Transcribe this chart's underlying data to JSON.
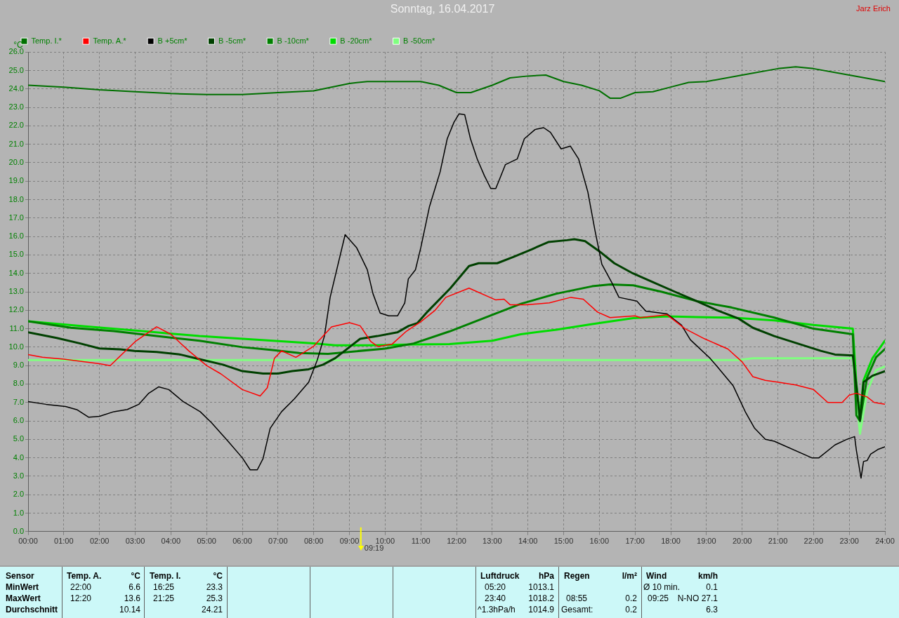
{
  "chart_data": {
    "type": "line",
    "title": "Sonntag, 16.04.2017",
    "ylabel": "°C",
    "xlim": [
      0,
      24
    ],
    "xticks": [
      {
        "value": 0,
        "label": "00:00"
      },
      {
        "value": 1,
        "label": "01:00"
      },
      {
        "value": 2,
        "label": "02:00"
      },
      {
        "value": 3,
        "label": "03:00"
      },
      {
        "value": 4,
        "label": "04:00"
      },
      {
        "value": 5,
        "label": "05:00"
      },
      {
        "value": 6,
        "label": "06:00"
      },
      {
        "value": 7,
        "label": "07:00"
      },
      {
        "value": 8,
        "label": "08:00"
      },
      {
        "value": 9,
        "label": "09:00"
      },
      {
        "value": 10,
        "label": "10:00"
      },
      {
        "value": 11,
        "label": "11:00"
      },
      {
        "value": 12,
        "label": "12:00"
      },
      {
        "value": 13,
        "label": "13:00"
      },
      {
        "value": 14,
        "label": "14:00"
      },
      {
        "value": 15,
        "label": "15:00"
      },
      {
        "value": 16,
        "label": "16:00"
      },
      {
        "value": 17,
        "label": "17:00"
      },
      {
        "value": 18,
        "label": "18:00"
      },
      {
        "value": 19,
        "label": "19:00"
      },
      {
        "value": 20,
        "label": "20:00"
      },
      {
        "value": 21,
        "label": "21:00"
      },
      {
        "value": 22,
        "label": "22:00"
      },
      {
        "value": 23,
        "label": "23:00"
      },
      {
        "value": 24,
        "label": "24:00"
      }
    ],
    "ylim": [
      0,
      26
    ],
    "yticks": [
      {
        "value": 0,
        "label": "0.0"
      },
      {
        "value": 1,
        "label": "1.0"
      },
      {
        "value": 2,
        "label": "2.0"
      },
      {
        "value": 3,
        "label": "3.0"
      },
      {
        "value": 4,
        "label": "4.0"
      },
      {
        "value": 5,
        "label": "5.0"
      },
      {
        "value": 6,
        "label": "6.0"
      },
      {
        "value": 7,
        "label": "7.0"
      },
      {
        "value": 8,
        "label": "8.0"
      },
      {
        "value": 9,
        "label": "9.0"
      },
      {
        "value": 10,
        "label": "10.0"
      },
      {
        "value": 11,
        "label": "11.0"
      },
      {
        "value": 12,
        "label": "12.0"
      },
      {
        "value": 13,
        "label": "13.0"
      },
      {
        "value": 14,
        "label": "14.0"
      },
      {
        "value": 15,
        "label": "15.0"
      },
      {
        "value": 16,
        "label": "16.0"
      },
      {
        "value": 17,
        "label": "17.0"
      },
      {
        "value": 18,
        "label": "18.0"
      },
      {
        "value": 19,
        "label": "19.0"
      },
      {
        "value": 20,
        "label": "20.0"
      },
      {
        "value": 21,
        "label": "21.0"
      },
      {
        "value": 22,
        "label": "22.0"
      },
      {
        "value": 23,
        "label": "23.0"
      },
      {
        "value": 24,
        "label": "24.0"
      },
      {
        "value": 25,
        "label": "25.0"
      },
      {
        "value": 26,
        "label": "26.0"
      }
    ],
    "grid": true,
    "legend": "top left",
    "marker": "none",
    "line_style": "solid",
    "ref_lines": [
      {
        "axis": "x",
        "value": 9.32,
        "label": "09:19",
        "color": "#ffff00"
      }
    ],
    "series": [
      {
        "name": "Temp. I.*",
        "color": "#007000",
        "x": [
          0,
          1,
          2,
          3,
          4,
          5,
          6,
          7,
          8,
          8.5,
          9,
          9.5,
          10,
          11,
          11.5,
          12,
          12.4,
          13,
          13.5,
          14,
          14.5,
          15,
          15.5,
          16,
          16.3,
          16.6,
          17,
          17.5,
          18,
          18.5,
          19,
          20,
          21,
          21.5,
          22,
          23,
          24
        ],
        "values": [
          24.2,
          24.1,
          23.95,
          23.85,
          23.75,
          23.7,
          23.7,
          23.8,
          23.9,
          24.1,
          24.3,
          24.4,
          24.4,
          24.4,
          24.2,
          23.8,
          23.8,
          24.2,
          24.6,
          24.7,
          24.75,
          24.4,
          24.2,
          23.9,
          23.5,
          23.5,
          23.8,
          23.85,
          24.1,
          24.35,
          24.4,
          24.75,
          25.1,
          25.2,
          25.1,
          24.75,
          24.4
        ]
      },
      {
        "name": "Temp. A.*",
        "color": "#ff0000",
        "x": [
          0,
          0.4,
          1,
          2,
          2.3,
          3,
          3.6,
          4,
          4.5,
          5,
          5.4,
          6,
          6.5,
          6.7,
          6.9,
          7.1,
          7.5,
          8,
          8.5,
          9,
          9.3,
          9.6,
          9.8,
          10.2,
          10.6,
          11,
          11.4,
          11.7,
          12.35,
          13.1,
          13.33,
          13.5,
          13.95,
          14.6,
          15.2,
          15.55,
          15.95,
          16.3,
          17,
          17.15,
          17.9,
          18.4,
          18.95,
          19.6,
          20,
          20.3,
          20.65,
          21,
          21.5,
          22,
          22.4,
          22.8,
          23,
          23.2,
          23.5,
          23.7,
          24
        ],
        "values": [
          9.6,
          9.45,
          9.35,
          9.1,
          9.0,
          10.3,
          11.1,
          10.7,
          9.8,
          9.0,
          8.55,
          7.7,
          7.35,
          7.8,
          9.4,
          9.8,
          9.45,
          10.05,
          11.1,
          11.33,
          11.16,
          10.3,
          10.03,
          10.17,
          10.87,
          11.38,
          12.0,
          12.7,
          13.2,
          12.56,
          12.6,
          12.3,
          12.3,
          12.4,
          12.7,
          12.6,
          11.9,
          11.6,
          11.7,
          11.6,
          11.75,
          11.0,
          10.45,
          9.9,
          9.2,
          8.4,
          8.2,
          8.1,
          7.95,
          7.7,
          7.0,
          7.0,
          7.4,
          7.5,
          7.3,
          7.0,
          6.9
        ]
      },
      {
        "name": "B +5cm*",
        "color": "#000000",
        "x": [
          0,
          0.5,
          1.05,
          1.38,
          1.7,
          2,
          2.4,
          2.78,
          3.1,
          3.38,
          3.66,
          3.94,
          4.34,
          4.82,
          5.14,
          5.6,
          6,
          6.22,
          6.42,
          6.58,
          6.78,
          7.1,
          7.46,
          7.86,
          8.1,
          8.3,
          8.46,
          8.88,
          9.2,
          9.5,
          9.66,
          9.86,
          10.1,
          10.35,
          10.55,
          10.65,
          10.85,
          11,
          11.24,
          11.54,
          11.74,
          11.93,
          12.07,
          12.23,
          12.39,
          12.58,
          12.78,
          12.96,
          13.1,
          13.37,
          13.7,
          13.9,
          14.2,
          14.44,
          14.63,
          14.93,
          15.19,
          15.42,
          15.68,
          15.88,
          16.07,
          16.35,
          16.55,
          17.05,
          17.3,
          17.9,
          18.3,
          18.55,
          19.1,
          19.3,
          19.75,
          20.1,
          20.35,
          20.65,
          20.9,
          21.95,
          22.15,
          22.6,
          22.93,
          23.15,
          23.2,
          23.33,
          23.4,
          23.5,
          23.6,
          23.8,
          24
        ],
        "values": [
          7.05,
          6.9,
          6.78,
          6.6,
          6.2,
          6.25,
          6.5,
          6.62,
          6.9,
          7.5,
          7.85,
          7.7,
          7.05,
          6.5,
          5.9,
          4.9,
          4.0,
          3.35,
          3.35,
          3.95,
          5.6,
          6.5,
          7.2,
          8.1,
          9.3,
          10.6,
          12.7,
          16.1,
          15.4,
          14.2,
          12.9,
          11.85,
          11.7,
          11.7,
          12.4,
          13.7,
          14.2,
          15.4,
          17.6,
          19.5,
          21.3,
          22.2,
          22.65,
          22.6,
          21.3,
          20.2,
          19.3,
          18.6,
          18.6,
          19.9,
          20.2,
          21.3,
          21.8,
          21.9,
          21.65,
          20.75,
          20.9,
          20.2,
          18.4,
          16.3,
          14.5,
          13.5,
          12.7,
          12.5,
          11.95,
          11.8,
          11.2,
          10.4,
          9.4,
          8.95,
          7.9,
          6.45,
          5.6,
          5.0,
          4.9,
          4.0,
          4.0,
          4.7,
          5.0,
          5.15,
          4.4,
          2.9,
          3.8,
          3.85,
          4.2,
          4.45,
          4.6
        ]
      },
      {
        "name": "B -5cm*",
        "color": "#004000",
        "x": [
          0,
          0.8,
          1.46,
          2,
          2.58,
          2.98,
          3.6,
          4.26,
          4.8,
          5.46,
          6,
          6.58,
          7,
          7.4,
          7.86,
          8.26,
          8.6,
          9,
          9.3,
          9.78,
          10.34,
          10.66,
          10.9,
          11.2,
          11.83,
          12.35,
          12.62,
          13.14,
          13.6,
          14.1,
          14.57,
          15.1,
          15.3,
          15.6,
          16,
          16.42,
          16.94,
          17.53,
          18.12,
          18.72,
          19.3,
          19.9,
          20.3,
          20.9,
          21.55,
          22.2,
          22.6,
          23.1,
          23.2,
          23.3,
          23.4,
          23.65,
          24
        ],
        "values": [
          10.8,
          10.5,
          10.2,
          9.93,
          9.88,
          9.8,
          9.74,
          9.6,
          9.35,
          9.05,
          8.7,
          8.57,
          8.57,
          8.7,
          8.8,
          9.05,
          9.4,
          10.0,
          10.45,
          10.6,
          10.8,
          11.15,
          11.3,
          11.95,
          13.2,
          14.4,
          14.55,
          14.55,
          14.9,
          15.3,
          15.7,
          15.8,
          15.85,
          15.75,
          15.2,
          14.55,
          14.0,
          13.5,
          13.0,
          12.5,
          12.0,
          11.55,
          11.05,
          10.6,
          10.2,
          9.8,
          9.6,
          9.55,
          7.9,
          6.0,
          8.1,
          8.45,
          8.7
        ]
      },
      {
        "name": "B -10cm*",
        "color": "#008000",
        "x": [
          0,
          1.2,
          2.4,
          3.6,
          4.8,
          6,
          6.8,
          7.6,
          8.4,
          9.2,
          10,
          10.8,
          11.8,
          13,
          13.8,
          14.8,
          15.8,
          16.3,
          16.95,
          17.75,
          18.72,
          19.7,
          20.9,
          22,
          23.1,
          23.2,
          23.3,
          23.5,
          23.75,
          24
        ],
        "values": [
          11.4,
          11.05,
          10.87,
          10.6,
          10.35,
          10.0,
          9.85,
          9.68,
          9.63,
          9.78,
          9.92,
          10.2,
          10.85,
          11.75,
          12.35,
          12.9,
          13.3,
          13.4,
          13.35,
          13.0,
          12.5,
          12.15,
          11.6,
          11.0,
          10.7,
          6.3,
          6.0,
          8.35,
          9.45,
          9.9
        ]
      },
      {
        "name": "B -20cm*",
        "color": "#00dd00",
        "x": [
          0,
          1.6,
          3.2,
          4.8,
          6.4,
          8,
          8.6,
          9.6,
          10.8,
          11.8,
          13,
          13.8,
          14.8,
          15.8,
          16.95,
          17.9,
          18.72,
          19.7,
          20.9,
          22,
          23.1,
          23.2,
          23.3,
          23.4,
          23.65,
          24
        ],
        "values": [
          11.4,
          11.13,
          10.87,
          10.6,
          10.4,
          10.2,
          10.1,
          10.1,
          10.15,
          10.17,
          10.35,
          10.7,
          10.95,
          11.25,
          11.57,
          11.67,
          11.63,
          11.6,
          11.45,
          11.2,
          11.0,
          8.0,
          6.3,
          8.2,
          9.4,
          10.35
        ]
      },
      {
        "name": "B -50cm*",
        "color": "#80ff80",
        "x": [
          0,
          5,
          10,
          15,
          19.9,
          20.3,
          23.1,
          23.3,
          23.5,
          23.75,
          24
        ],
        "values": [
          9.3,
          9.3,
          9.3,
          9.3,
          9.3,
          9.4,
          9.4,
          5.3,
          7.6,
          8.75,
          8.95
        ]
      }
    ],
    "annotations": [
      "Jarz Erich",
      "Sensor",
      "MinWert",
      "MaxWert",
      "Durchschnitt",
      "Temp. A.",
      "°C",
      "22:00",
      "6.6",
      "12:20",
      "13.6",
      "10.14",
      "Temp. I.",
      "°C",
      "16:25",
      "23.3",
      "21:25",
      "25.3",
      "24.21",
      "Luftdruck",
      "hPa",
      "05:20",
      "1013.1",
      "23:40",
      "1018.2",
      "^1.3hPa/h",
      "1014.9",
      "Regen",
      "l/m²",
      "08:55",
      "0.2",
      "Gesamt:",
      "0.2",
      "Wind",
      "km/h",
      "Ø 10 min.",
      "0.1",
      "09:25",
      "N-NO 27.1",
      "6.3"
    ]
  }
}
